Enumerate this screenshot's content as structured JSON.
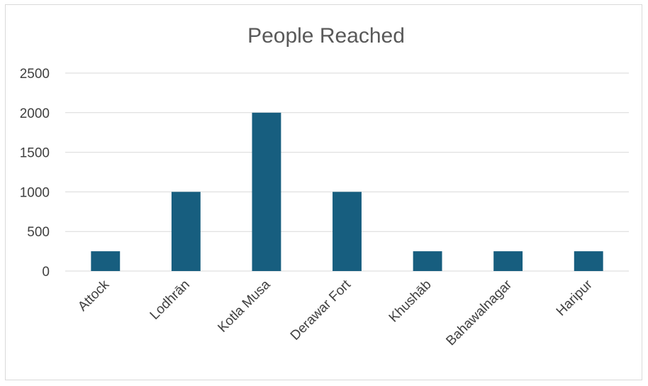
{
  "chart_data": {
    "type": "bar",
    "title": "People Reached",
    "xlabel": "",
    "ylabel": "",
    "categories": [
      "Attock",
      "Lodhrān",
      "Kotla Musa",
      "Derawar Fort",
      "Khushāb",
      "Bahawalnagar",
      "Haripur"
    ],
    "values": [
      250,
      1000,
      2000,
      1000,
      250,
      250,
      250
    ],
    "ylim": [
      0,
      2500
    ],
    "yticks": [
      "0",
      "500",
      "1000",
      "1500",
      "2000",
      "2500"
    ],
    "grid": true,
    "legend": "none",
    "bar_color": "#175E7F"
  }
}
